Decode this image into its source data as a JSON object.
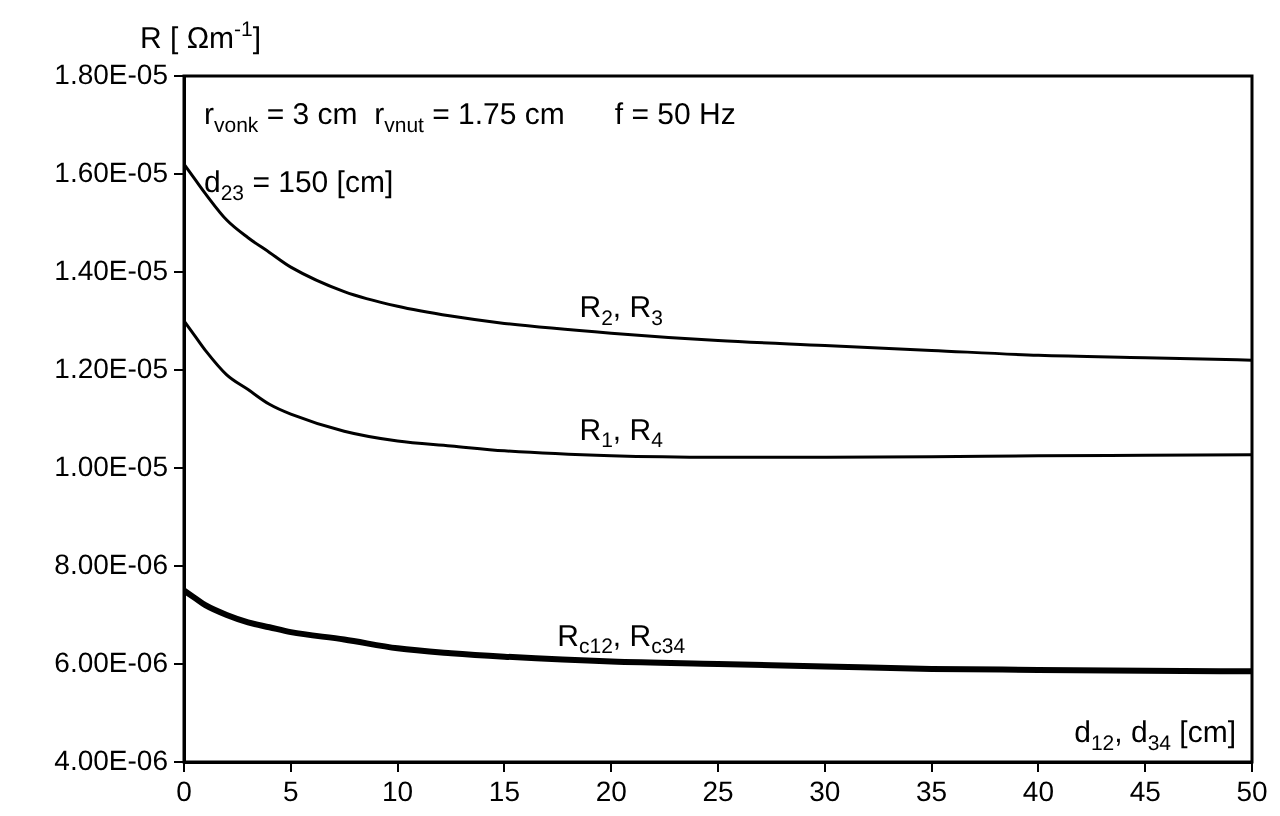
{
  "chart_data": {
    "type": "line",
    "ylabel": "R [ Ωm$^{-1}$]",
    "xlabel": "d$_{12}$, d$_{34}$ [cm]",
    "x": [
      0,
      0.5,
      1,
      2,
      3,
      4,
      5,
      7.5,
      10,
      12.5,
      15,
      20,
      25,
      30,
      35,
      40,
      45,
      50
    ],
    "series": [
      {
        "name": "R$_{2}$, R$_{3}$",
        "color": "#000000",
        "values": [
          1.62e-05,
          1.59e-05,
          1.56e-05,
          1.506e-05,
          1.47e-05,
          1.44e-05,
          1.41e-05,
          1.36e-05,
          1.33e-05,
          1.31e-05,
          1.295e-05,
          1.275e-05,
          1.26e-05,
          1.25e-05,
          1.24e-05,
          1.23e-05,
          1.225e-05,
          1.22e-05
        ]
      },
      {
        "name": "R$_{1}$, R$_{4}$",
        "color": "#000000",
        "values": [
          1.3e-05,
          1.27e-05,
          1.24e-05,
          1.19e-05,
          1.16e-05,
          1.13e-05,
          1.11e-05,
          1.075e-05,
          1.055e-05,
          1.045e-05,
          1.035e-05,
          1.025e-05,
          1.022e-05,
          1.022e-05,
          1.023e-05,
          1.025e-05,
          1.026e-05,
          1.027e-05
        ]
      },
      {
        "name": "R$_{c12}$, R$_{c34}$",
        "color": "#000000",
        "values": [
          7.5e-06,
          7.35e-06,
          7.2e-06,
          7e-06,
          6.85e-06,
          6.75e-06,
          6.65e-06,
          6.5e-06,
          6.32e-06,
          6.22e-06,
          6.15e-06,
          6.05e-06,
          6e-06,
          5.95e-06,
          5.9e-06,
          5.88e-06,
          5.86e-06,
          5.85e-06
        ]
      }
    ],
    "annotations": [
      "r$_{vonk}$ = 3 cm  r$_{vnut}$ = 1.75 cm      f = 50 Hz",
      "d$_{23}$ = 150 [cm]"
    ],
    "xlim": [
      0,
      50
    ],
    "xticks": [
      0,
      5,
      10,
      15,
      20,
      25,
      30,
      35,
      40,
      45,
      50
    ],
    "ylim": [
      4e-06,
      1.8e-05
    ],
    "yticks": [
      {
        "value": 4e-06,
        "label": "4.00E-06"
      },
      {
        "value": 6e-06,
        "label": "6.00E-06"
      },
      {
        "value": 8e-06,
        "label": "8.00E-06"
      },
      {
        "value": 1e-05,
        "label": "1.00E-05"
      },
      {
        "value": 1.2e-05,
        "label": "1.20E-05"
      },
      {
        "value": 1.4e-05,
        "label": "1.40E-05"
      },
      {
        "value": 1.6e-05,
        "label": "1.60E-05"
      },
      {
        "value": 1.8e-05,
        "label": "1.80E-05"
      }
    ],
    "grid": false,
    "legend": false,
    "marker": "none",
    "line_style": "solid"
  }
}
